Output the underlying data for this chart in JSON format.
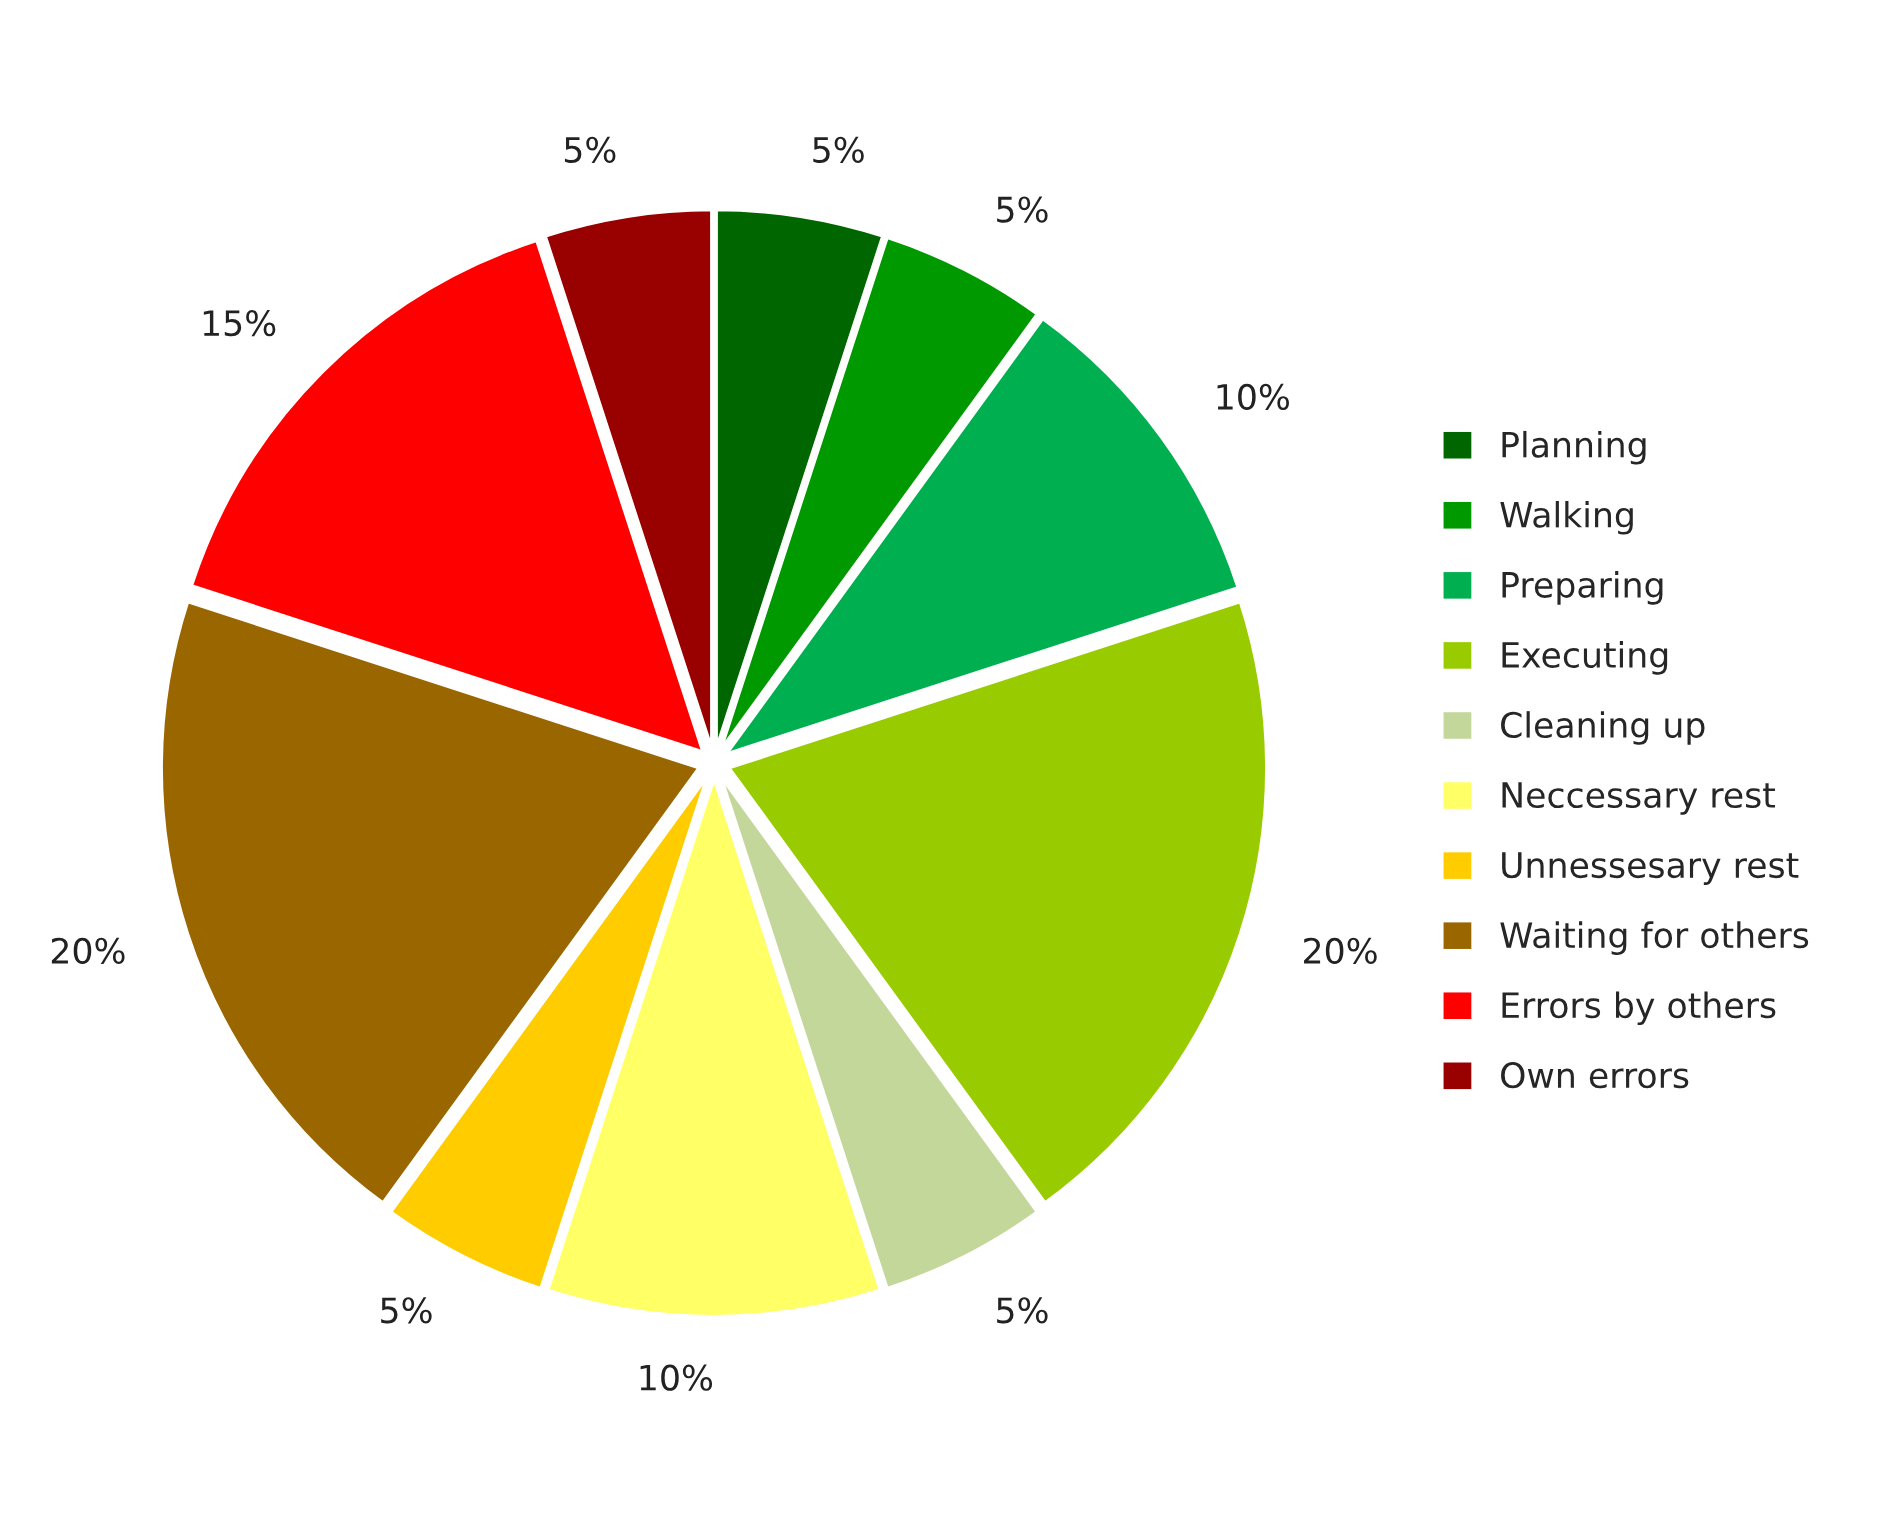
{
  "chart_data": {
    "type": "pie",
    "categories": [
      "Planning",
      "Walking",
      "Preparing",
      "Executing",
      "Cleaning up",
      "Neccessary rest",
      "Unnessesary rest",
      "Waiting for others",
      "Errors by others",
      "Own errors"
    ],
    "values": [
      5,
      5,
      10,
      20,
      5,
      10,
      5,
      20,
      15,
      5
    ],
    "colors": [
      "#006600",
      "#009900",
      "#00b050",
      "#99cc00",
      "#c4d79b",
      "#ffff66",
      "#ffcc00",
      "#996600",
      "#ff0000",
      "#990000"
    ],
    "value_labels": [
      "5%",
      "5%",
      "10%",
      "20%",
      "5%",
      "10%",
      "5%",
      "20%",
      "15%",
      "5%"
    ],
    "legend": "right"
  }
}
